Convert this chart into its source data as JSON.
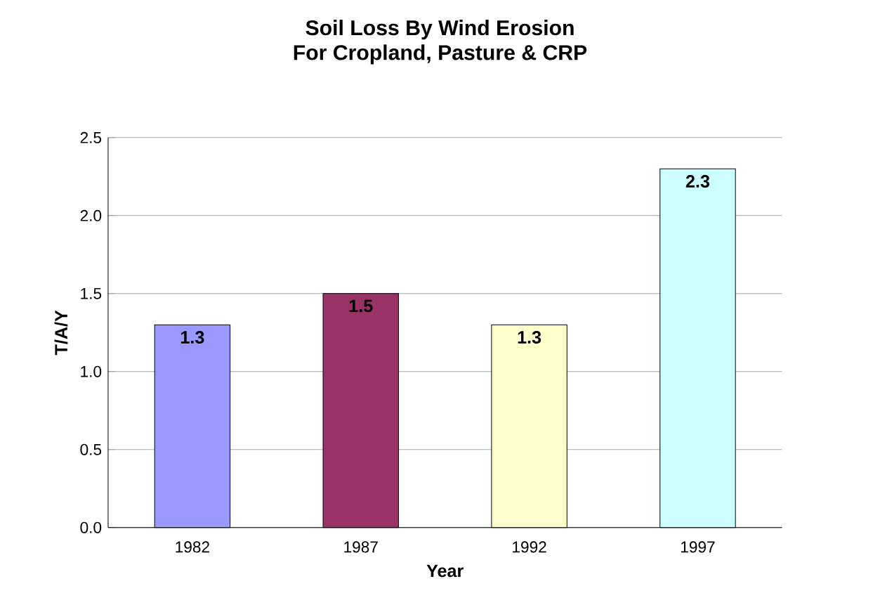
{
  "chart_data": {
    "type": "bar",
    "title": "Soil Loss By Wind Erosion",
    "subtitle": "For Cropland, Pasture & CRP",
    "xlabel": "Year",
    "ylabel": "T/A/Y",
    "categories": [
      "1982",
      "1987",
      "1992",
      "1997"
    ],
    "values": [
      1.3,
      1.5,
      1.3,
      2.3
    ],
    "colors": [
      "#9999ff",
      "#993366",
      "#ffffcc",
      "#ccffff"
    ],
    "data_labels": true,
    "ylim": [
      0,
      2.5
    ],
    "yticks": [
      {
        "value": 0,
        "label": "0.0"
      },
      {
        "value": 0.5,
        "label": "0.5"
      },
      {
        "value": 1,
        "label": "1.0"
      },
      {
        "value": 1.5,
        "label": "1.5"
      },
      {
        "value": 2,
        "label": "2.0"
      },
      {
        "value": 2.5,
        "label": "2.5"
      }
    ],
    "grid": "y"
  }
}
